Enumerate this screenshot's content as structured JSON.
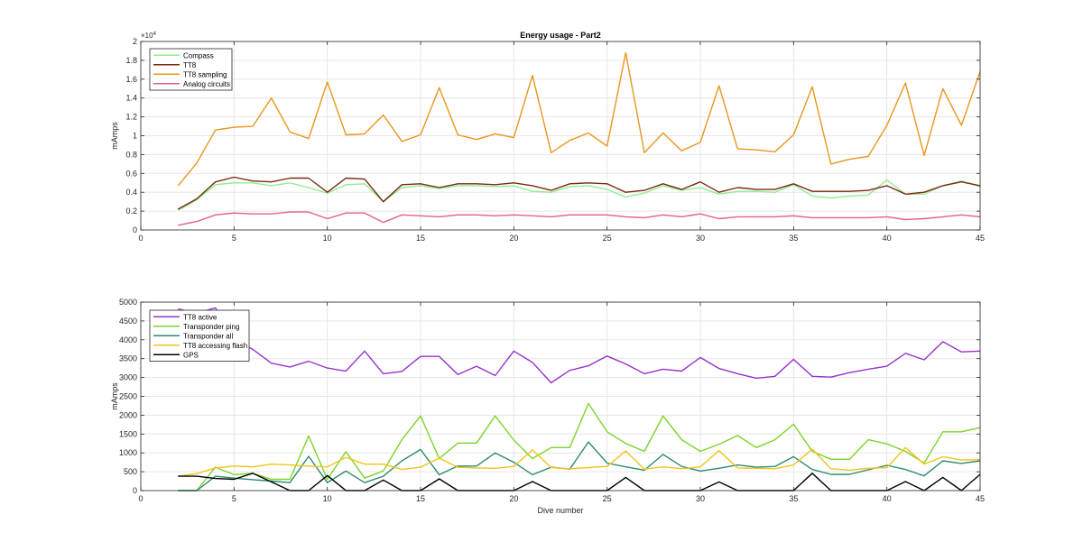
{
  "chart_data": [
    {
      "type": "line",
      "title": "Energy usage - Part2",
      "xlabel": "",
      "ylabel": "mAmps",
      "exponent_label": "×10",
      "exponent_power": "4",
      "xlim": [
        0,
        45
      ],
      "ylim": [
        0,
        20000
      ],
      "xticks": [
        0,
        5,
        10,
        15,
        20,
        25,
        30,
        35,
        40,
        45
      ],
      "yticks": [
        0,
        2000,
        4000,
        6000,
        8000,
        10000,
        12000,
        14000,
        16000,
        18000,
        20000
      ],
      "ytick_labels": [
        "0",
        "0.2",
        "0.4",
        "0.6",
        "0.8",
        "1",
        "1.2",
        "1.4",
        "1.6",
        "1.8",
        "2"
      ],
      "grid": true,
      "legend_position": "top-left",
      "x": [
        2,
        3,
        4,
        5,
        6,
        7,
        8,
        9,
        10,
        11,
        12,
        13,
        14,
        15,
        16,
        17,
        18,
        19,
        20,
        21,
        22,
        23,
        24,
        25,
        26,
        27,
        28,
        29,
        30,
        31,
        32,
        33,
        34,
        35,
        36,
        37,
        38,
        39,
        40,
        41,
        42,
        43,
        44,
        45
      ],
      "series": [
        {
          "name": "Compass",
          "color": "#90ee90",
          "values": [
            2100,
            3200,
            4800,
            5000,
            5000,
            4700,
            5000,
            4500,
            3900,
            4800,
            4900,
            3000,
            4500,
            4700,
            4400,
            4700,
            4700,
            4600,
            4700,
            4100,
            4000,
            4600,
            4700,
            4300,
            3500,
            3900,
            4700,
            4200,
            4500,
            3800,
            4100,
            4100,
            4000,
            4800,
            3600,
            3400,
            3600,
            3700,
            5300,
            3800,
            3800,
            4700,
            5200,
            4600
          ]
        },
        {
          "name": "TT8",
          "color": "#7a2a10",
          "values": [
            2200,
            3300,
            5100,
            5600,
            5200,
            5100,
            5500,
            5500,
            4000,
            5500,
            5400,
            3000,
            4800,
            4900,
            4500,
            4900,
            4900,
            4800,
            5000,
            4700,
            4200,
            4900,
            5000,
            4900,
            4000,
            4200,
            4900,
            4300,
            5100,
            4000,
            4500,
            4300,
            4300,
            4900,
            4100,
            4100,
            4100,
            4200,
            4700,
            3800,
            4000,
            4700,
            5100,
            4700
          ]
        },
        {
          "name": "TT8 sampling",
          "color": "#e8961c",
          "values": [
            4700,
            7100,
            10600,
            10900,
            11000,
            14000,
            10400,
            9700,
            15700,
            10100,
            10200,
            12200,
            9400,
            10100,
            15100,
            10100,
            9600,
            10200,
            9800,
            16400,
            8200,
            9500,
            10300,
            8900,
            18800,
            8200,
            10300,
            8400,
            9300,
            15300,
            8600,
            8500,
            8300,
            10100,
            15200,
            7000,
            7500,
            7800,
            11100,
            15600,
            7900,
            15000,
            11100,
            16800
          ]
        },
        {
          "name": "Analog circuits",
          "color": "#e0608a",
          "values": [
            500,
            900,
            1600,
            1800,
            1700,
            1700,
            1900,
            1900,
            1200,
            1800,
            1800,
            800,
            1600,
            1500,
            1400,
            1600,
            1600,
            1500,
            1600,
            1500,
            1400,
            1600,
            1600,
            1600,
            1400,
            1300,
            1600,
            1400,
            1700,
            1200,
            1400,
            1400,
            1400,
            1500,
            1300,
            1300,
            1300,
            1300,
            1400,
            1100,
            1200,
            1400,
            1600,
            1400
          ]
        }
      ]
    },
    {
      "type": "line",
      "title": "",
      "xlabel": "Dive number",
      "ylabel": "mAmps",
      "xlim": [
        0,
        45
      ],
      "ylim": [
        0,
        5000
      ],
      "xticks": [
        0,
        5,
        10,
        15,
        20,
        25,
        30,
        35,
        40,
        45
      ],
      "yticks": [
        0,
        500,
        1000,
        1500,
        2000,
        2500,
        3000,
        3500,
        4000,
        4500,
        5000
      ],
      "ytick_labels": [
        "0",
        "500",
        "1000",
        "1500",
        "2000",
        "2500",
        "3000",
        "3500",
        "4000",
        "4500",
        "5000"
      ],
      "grid": true,
      "legend_position": "top-left",
      "x": [
        2,
        3,
        4,
        5,
        6,
        7,
        8,
        9,
        10,
        11,
        12,
        13,
        14,
        15,
        16,
        17,
        18,
        19,
        20,
        21,
        22,
        23,
        24,
        25,
        26,
        27,
        28,
        29,
        30,
        31,
        32,
        33,
        34,
        35,
        36,
        37,
        38,
        39,
        40,
        41,
        42,
        43,
        44,
        45
      ],
      "series": [
        {
          "name": "TT8 active",
          "color": "#9932cc",
          "values": [
            4820,
            4700,
            4850,
            4000,
            3750,
            3380,
            3280,
            3430,
            3250,
            3170,
            3700,
            3100,
            3160,
            3560,
            3560,
            3080,
            3300,
            3050,
            3700,
            3400,
            2860,
            3190,
            3310,
            3570,
            3360,
            3100,
            3220,
            3170,
            3530,
            3240,
            3100,
            2980,
            3030,
            3480,
            3030,
            3010,
            3130,
            3220,
            3300,
            3640,
            3470,
            3950,
            3680,
            3700
          ]
        },
        {
          "name": "Transponder ping",
          "color": "#7ed32a",
          "values": [
            0,
            0,
            620,
            420,
            460,
            300,
            300,
            1450,
            300,
            1030,
            330,
            520,
            1350,
            1980,
            850,
            1260,
            1260,
            1980,
            1340,
            850,
            1140,
            1140,
            2310,
            1560,
            1250,
            1040,
            1980,
            1350,
            1040,
            1230,
            1460,
            1140,
            1350,
            1760,
            1040,
            830,
            830,
            1350,
            1240,
            1040,
            730,
            1560,
            1560,
            1670
          ]
        },
        {
          "name": "Transponder all",
          "color": "#2e8b6e",
          "values": [
            0,
            0,
            380,
            330,
            290,
            250,
            210,
            910,
            210,
            520,
            210,
            380,
            790,
            1090,
            420,
            650,
            650,
            1000,
            750,
            420,
            620,
            570,
            1290,
            730,
            630,
            540,
            960,
            640,
            520,
            590,
            680,
            620,
            640,
            900,
            560,
            430,
            430,
            550,
            670,
            560,
            390,
            790,
            720,
            790
          ]
        },
        {
          "name": "TT8 accessing flash",
          "color": "#f0c419",
          "values": [
            380,
            450,
            600,
            650,
            630,
            700,
            680,
            650,
            630,
            880,
            700,
            700,
            560,
            620,
            860,
            620,
            600,
            590,
            640,
            1080,
            610,
            580,
            610,
            640,
            1050,
            570,
            630,
            580,
            630,
            1060,
            600,
            590,
            580,
            680,
            1100,
            580,
            540,
            590,
            610,
            1140,
            700,
            900,
            810,
            820
          ]
        },
        {
          "name": "GPS",
          "color": "#000000",
          "values": [
            380,
            380,
            320,
            300,
            460,
            230,
            0,
            0,
            400,
            0,
            0,
            280,
            0,
            0,
            310,
            0,
            0,
            0,
            0,
            240,
            0,
            0,
            0,
            0,
            350,
            0,
            0,
            0,
            0,
            230,
            0,
            0,
            0,
            0,
            460,
            0,
            0,
            0,
            0,
            240,
            0,
            350,
            0,
            430
          ]
        }
      ]
    }
  ]
}
